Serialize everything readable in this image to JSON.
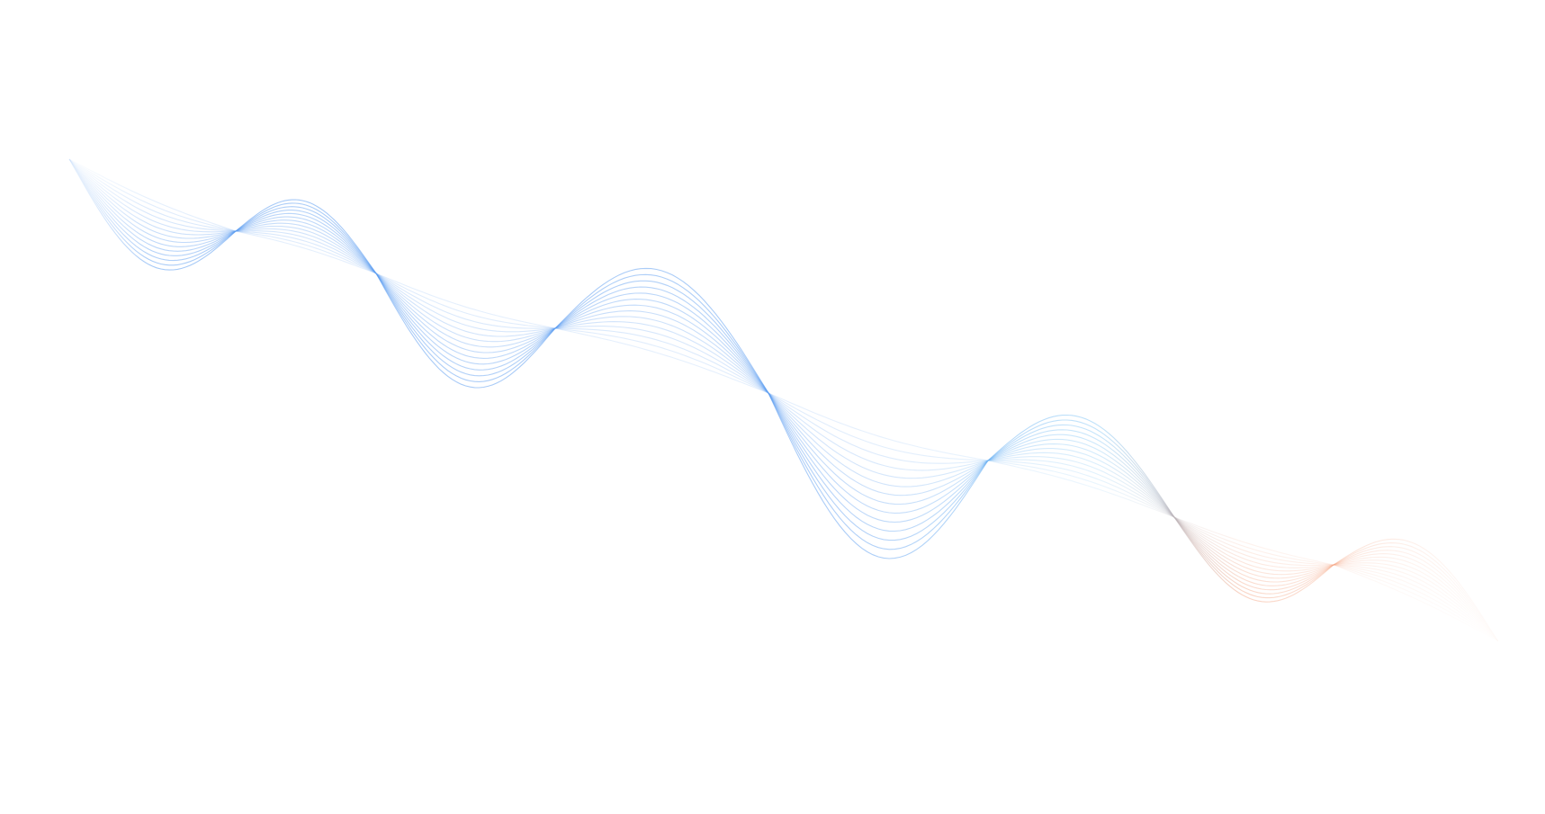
{
  "graphic": {
    "type": "decorative-wave-lines",
    "line_count": 14,
    "colors": {
      "background": "#ffffff",
      "start": "#5b9cf0",
      "middle": "#7cc4f5",
      "end": "#f4a27f"
    }
  }
}
